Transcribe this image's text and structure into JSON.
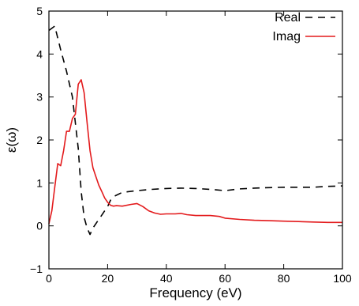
{
  "chart_data": {
    "type": "line",
    "title": "",
    "xlabel": "Frequency (eV)",
    "ylabel": "ε(ω)",
    "xlim": [
      0,
      100
    ],
    "ylim": [
      -1,
      5
    ],
    "xticks": [
      "0",
      "20",
      "40",
      "60",
      "80",
      "100"
    ],
    "yticks": [
      "−1",
      "0",
      "1",
      "2",
      "3",
      "4",
      "5"
    ],
    "xtick_values": [
      0,
      20,
      40,
      60,
      80,
      100
    ],
    "ytick_values": [
      -1,
      0,
      1,
      2,
      3,
      4,
      5
    ],
    "grid": false,
    "legend_position": "top-right",
    "series": [
      {
        "name": "Real",
        "color": "#000000",
        "style": "dashed",
        "x": [
          0,
          2,
          4,
          6,
          8,
          10,
          11,
          12,
          13,
          14,
          15,
          16,
          17,
          18,
          19,
          20,
          21,
          22,
          25,
          30,
          35,
          40,
          45,
          50,
          55,
          60,
          65,
          70,
          75,
          80,
          85,
          90,
          95,
          100
        ],
        "y": [
          4.55,
          4.65,
          4.1,
          3.6,
          3.0,
          1.8,
          0.8,
          0.2,
          -0.05,
          -0.2,
          -0.05,
          0.05,
          0.15,
          0.25,
          0.35,
          0.45,
          0.6,
          0.68,
          0.78,
          0.82,
          0.85,
          0.87,
          0.88,
          0.87,
          0.85,
          0.82,
          0.86,
          0.88,
          0.89,
          0.9,
          0.9,
          0.9,
          0.92,
          0.93
        ]
      },
      {
        "name": "Imag",
        "color": "#e31a1c",
        "style": "solid",
        "x": [
          0,
          1,
          2,
          3,
          4,
          5,
          6,
          7,
          8,
          9,
          10,
          11,
          12,
          13,
          14,
          15,
          16,
          17,
          18,
          19,
          20,
          21,
          22,
          23,
          25,
          28,
          30,
          32,
          34,
          36,
          38,
          40,
          43,
          45,
          47,
          50,
          55,
          58,
          60,
          65,
          70,
          75,
          80,
          85,
          90,
          95,
          100
        ],
        "y": [
          0.05,
          0.35,
          0.9,
          1.45,
          1.4,
          1.75,
          2.2,
          2.2,
          2.5,
          2.6,
          3.3,
          3.4,
          3.1,
          2.4,
          1.75,
          1.35,
          1.15,
          0.95,
          0.8,
          0.65,
          0.55,
          0.48,
          0.46,
          0.47,
          0.46,
          0.5,
          0.52,
          0.45,
          0.35,
          0.3,
          0.27,
          0.28,
          0.28,
          0.29,
          0.26,
          0.24,
          0.24,
          0.22,
          0.18,
          0.15,
          0.13,
          0.12,
          0.11,
          0.1,
          0.09,
          0.08,
          0.08
        ]
      }
    ]
  }
}
